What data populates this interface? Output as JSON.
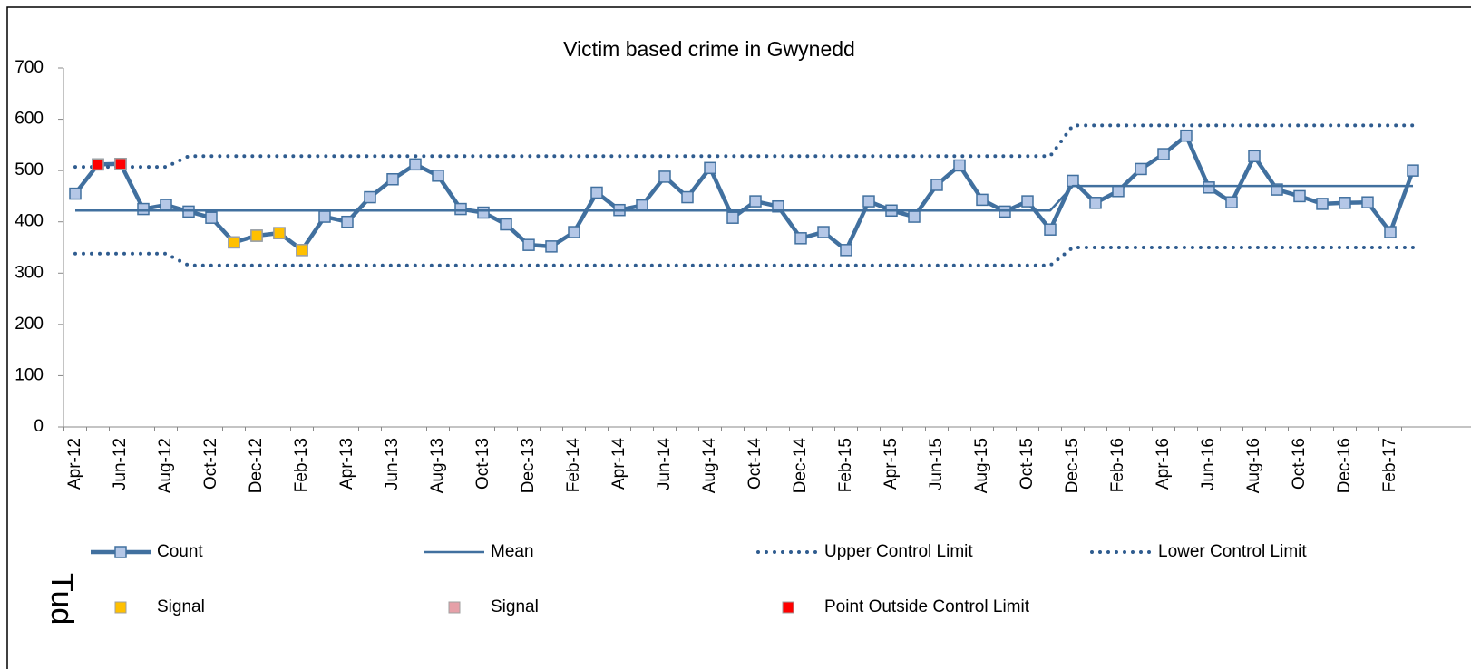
{
  "chart_data": {
    "type": "line",
    "title": "Victim based crime in Gwynedd",
    "categories": [
      "Apr-12",
      null,
      "Jun-12",
      null,
      "Aug-12",
      null,
      "Oct-12",
      null,
      "Dec-12",
      null,
      "Feb-13",
      null,
      "Apr-13",
      null,
      "Jun-13",
      null,
      "Aug-13",
      null,
      "Oct-13",
      null,
      "Dec-13",
      null,
      "Feb-14",
      null,
      "Apr-14",
      null,
      "Jun-14",
      null,
      "Aug-14",
      null,
      "Oct-14",
      null,
      "Dec-14",
      null,
      "Feb-15",
      null,
      "Apr-15",
      null,
      "Jun-15",
      null,
      "Aug-15",
      null,
      "Oct-15",
      null,
      "Dec-15",
      null,
      "Feb-16",
      null,
      "Apr-16",
      null,
      "Jun-16",
      null,
      "Aug-16",
      null,
      "Oct-16",
      null,
      "Dec-16",
      null,
      "Feb-17",
      null
    ],
    "ylim": [
      0,
      700
    ],
    "yticks": [
      0,
      100,
      200,
      300,
      400,
      500,
      600,
      700
    ],
    "series": [
      {
        "name": "Count",
        "style": "line-marker",
        "color": "#41709f",
        "marker_color": "#b4c7e7",
        "values": [
          455,
          512,
          513,
          425,
          433,
          420,
          408,
          360,
          373,
          378,
          345,
          410,
          400,
          448,
          483,
          512,
          490,
          425,
          418,
          395,
          355,
          352,
          380,
          457,
          423,
          432,
          488,
          448,
          505,
          408,
          440,
          430,
          368,
          380,
          345,
          440,
          422,
          410,
          472,
          510,
          443,
          420,
          440,
          385,
          480,
          437,
          460,
          503,
          532,
          568,
          467,
          438,
          528,
          463,
          450,
          435,
          437,
          438,
          380,
          500
        ]
      },
      {
        "name": "Mean",
        "style": "line",
        "color": "#41709f",
        "values": [
          422,
          422,
          422,
          422,
          422,
          422,
          422,
          422,
          422,
          422,
          422,
          422,
          422,
          422,
          422,
          422,
          422,
          422,
          422,
          422,
          422,
          422,
          422,
          422,
          422,
          422,
          422,
          422,
          422,
          422,
          422,
          422,
          422,
          422,
          422,
          422,
          422,
          422,
          422,
          422,
          422,
          422,
          422,
          422,
          470,
          470,
          470,
          470,
          470,
          470,
          470,
          470,
          470,
          470,
          470,
          470,
          470,
          470,
          470,
          470
        ]
      },
      {
        "name": "Upper Control Limit",
        "style": "dotted",
        "color": "#2f5c8f",
        "values": [
          507,
          507,
          507,
          507,
          507,
          528,
          528,
          528,
          528,
          528,
          528,
          528,
          528,
          528,
          528,
          528,
          528,
          528,
          528,
          528,
          528,
          528,
          528,
          528,
          528,
          528,
          528,
          528,
          528,
          528,
          528,
          528,
          528,
          528,
          528,
          528,
          528,
          528,
          528,
          528,
          528,
          528,
          528,
          528,
          588,
          588,
          588,
          588,
          588,
          588,
          588,
          588,
          588,
          588,
          588,
          588,
          588,
          588,
          588,
          588
        ]
      },
      {
        "name": "Lower Control Limit",
        "style": "dotted",
        "color": "#2f5c8f",
        "values": [
          338,
          338,
          338,
          338,
          338,
          315,
          315,
          315,
          315,
          315,
          315,
          315,
          315,
          315,
          315,
          315,
          315,
          315,
          315,
          315,
          315,
          315,
          315,
          315,
          315,
          315,
          315,
          315,
          315,
          315,
          315,
          315,
          315,
          315,
          315,
          315,
          315,
          315,
          315,
          315,
          315,
          315,
          315,
          315,
          350,
          350,
          350,
          350,
          350,
          350,
          350,
          350,
          350,
          350,
          350,
          350,
          350,
          350,
          350,
          350
        ]
      },
      {
        "name": "Signal",
        "style": "marker",
        "color": "#ffc000",
        "values": [
          null,
          null,
          null,
          null,
          null,
          null,
          null,
          360,
          373,
          378,
          345,
          null,
          null,
          null,
          null,
          null,
          null,
          null,
          null,
          null,
          null,
          null,
          null,
          null,
          null,
          null,
          null,
          null,
          null,
          null,
          null,
          null,
          null,
          null,
          null,
          null,
          null,
          null,
          null,
          null,
          null,
          null,
          null,
          null,
          null,
          null,
          null,
          null,
          null,
          null,
          null,
          null,
          null,
          null,
          null,
          null,
          null,
          null,
          null,
          null
        ]
      },
      {
        "name": "Signal",
        "style": "marker",
        "color": "#e6a0a8",
        "values": [
          null,
          null,
          null,
          null,
          null,
          null,
          null,
          null,
          null,
          null,
          null,
          null,
          null,
          null,
          null,
          null,
          null,
          null,
          null,
          null,
          null,
          null,
          null,
          null,
          null,
          null,
          null,
          null,
          null,
          null,
          null,
          null,
          null,
          null,
          null,
          null,
          null,
          null,
          null,
          null,
          null,
          null,
          null,
          null,
          null,
          null,
          null,
          null,
          null,
          null,
          null,
          null,
          null,
          null,
          null,
          null,
          null,
          null,
          null,
          null
        ]
      },
      {
        "name": "Point Outside Control Limit",
        "style": "marker",
        "color": "#ff0000",
        "values": [
          null,
          512,
          513,
          null,
          null,
          null,
          null,
          null,
          null,
          null,
          null,
          null,
          null,
          null,
          null,
          null,
          null,
          null,
          null,
          null,
          null,
          null,
          null,
          null,
          null,
          null,
          null,
          null,
          null,
          null,
          null,
          null,
          null,
          null,
          null,
          null,
          null,
          null,
          null,
          null,
          null,
          null,
          null,
          null,
          null,
          null,
          null,
          null,
          null,
          null,
          null,
          null,
          null,
          null,
          null,
          null,
          null,
          null,
          null,
          null
        ]
      }
    ]
  },
  "page_label": "Tud"
}
